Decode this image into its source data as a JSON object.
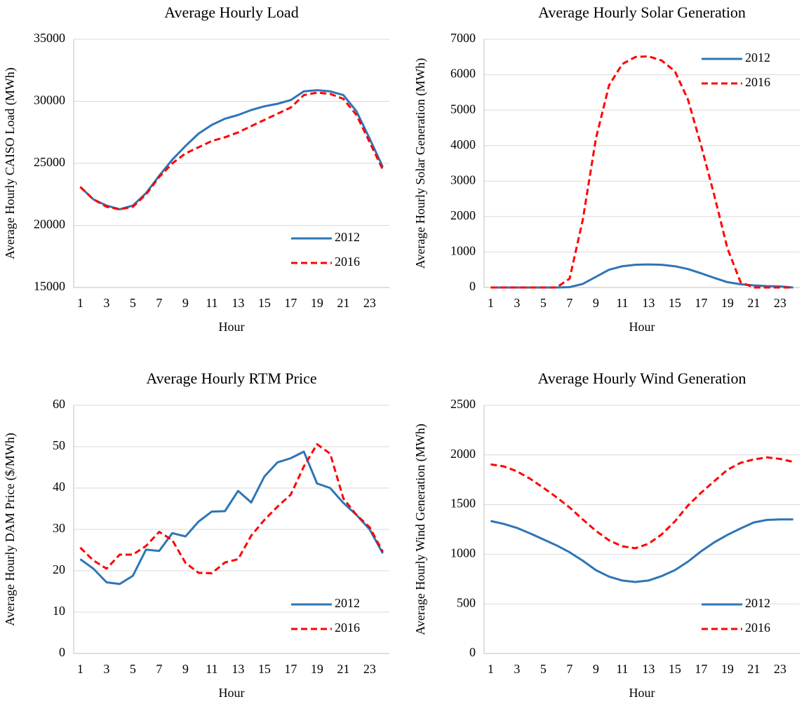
{
  "chart_data": [
    {
      "type": "line",
      "title": "Average Hourly Load",
      "x_label": "Hour",
      "y_label": "Average Hourly CAISO Load (MWh)",
      "categories": [
        1,
        null,
        3,
        null,
        5,
        null,
        7,
        null,
        9,
        null,
        11,
        null,
        13,
        null,
        15,
        null,
        17,
        null,
        19,
        null,
        21,
        null,
        23,
        null
      ],
      "series": [
        {
          "name": "2012",
          "color": "#2e75b6",
          "dashed": false,
          "values": [
            23100,
            22100,
            21600,
            21300,
            21600,
            22600,
            24000,
            25300,
            26400,
            27400,
            28100,
            28600,
            28900,
            29300,
            29600,
            29800,
            30100,
            30800,
            30900,
            30800,
            30500,
            29200,
            27000,
            24700
          ]
        },
        {
          "name": "2016",
          "color": "#ff0000",
          "dashed": true,
          "values": [
            23100,
            22100,
            21500,
            21300,
            21500,
            22500,
            23900,
            25000,
            25800,
            26300,
            26800,
            27100,
            27500,
            28000,
            28500,
            29000,
            29500,
            30500,
            30700,
            30600,
            30200,
            28900,
            26700,
            24500
          ]
        }
      ],
      "ylim": [
        15000,
        35000
      ],
      "yticks": [
        15000,
        20000,
        25000,
        30000,
        35000
      ],
      "grid": true,
      "legend": "lower right"
    },
    {
      "type": "line",
      "title": "Average Hourly Solar Generation",
      "x_label": "Hour",
      "y_label": "Average Hourly Solar Generation (MWh)",
      "categories": [
        1,
        null,
        3,
        null,
        5,
        null,
        7,
        null,
        9,
        null,
        11,
        null,
        13,
        null,
        15,
        null,
        17,
        null,
        19,
        null,
        21,
        null,
        23,
        null
      ],
      "series": [
        {
          "name": "2012",
          "color": "#2e75b6",
          "dashed": false,
          "values": [
            0,
            0,
            0,
            0,
            0,
            0,
            10,
            100,
            300,
            500,
            600,
            640,
            650,
            640,
            600,
            520,
            400,
            270,
            150,
            90,
            60,
            40,
            30,
            0
          ]
        },
        {
          "name": "2016",
          "color": "#ff0000",
          "dashed": true,
          "values": [
            0,
            0,
            0,
            0,
            0,
            0,
            250,
            1900,
            4200,
            5700,
            6300,
            6500,
            6520,
            6400,
            6100,
            5300,
            4000,
            2600,
            1100,
            150,
            0,
            0,
            0,
            0
          ]
        }
      ],
      "ylim": [
        0,
        7000
      ],
      "yticks": [
        0,
        1000,
        2000,
        3000,
        4000,
        5000,
        6000,
        7000
      ],
      "grid": true,
      "legend": "upper right"
    },
    {
      "type": "line",
      "title": "Average Hourly RTM Price",
      "x_label": "Hour",
      "y_label": "Average Hourly DAM Price ($/MWh)",
      "categories": [
        1,
        null,
        3,
        null,
        5,
        null,
        7,
        null,
        9,
        null,
        11,
        null,
        13,
        null,
        15,
        null,
        17,
        null,
        19,
        null,
        21,
        null,
        23,
        null
      ],
      "series": [
        {
          "name": "2012",
          "color": "#2e75b6",
          "dashed": false,
          "values": [
            22.8,
            20.5,
            17.2,
            16.8,
            18.8,
            25.1,
            24.8,
            29.1,
            28.3,
            31.9,
            34.3,
            34.4,
            39.3,
            36.5,
            42.8,
            46.2,
            47.2,
            48.8,
            41.1,
            40.0,
            36.4,
            33.5,
            30.0,
            24.2
          ]
        },
        {
          "name": "2016",
          "color": "#ff0000",
          "dashed": true,
          "values": [
            25.6,
            22.5,
            20.5,
            23.9,
            23.9,
            26.0,
            29.4,
            27.4,
            21.9,
            19.5,
            19.4,
            22.0,
            22.8,
            28.5,
            32.3,
            35.5,
            38.4,
            45.2,
            50.6,
            48.3,
            37.5,
            33.5,
            30.5,
            24.6
          ]
        }
      ],
      "ylim": [
        0,
        60
      ],
      "yticks": [
        0,
        10,
        20,
        30,
        40,
        50,
        60
      ],
      "grid": true,
      "legend": "lower right"
    },
    {
      "type": "line",
      "title": "Average Hourly Wind Generation",
      "x_label": "Hour",
      "y_label": "Average Hourly Wind Generation (MWh)",
      "categories": [
        1,
        null,
        3,
        null,
        5,
        null,
        7,
        null,
        9,
        null,
        11,
        null,
        13,
        null,
        15,
        null,
        17,
        null,
        19,
        null,
        21,
        null,
        23,
        null
      ],
      "series": [
        {
          "name": "2012",
          "color": "#2e75b6",
          "dashed": false,
          "values": [
            1335,
            1305,
            1265,
            1210,
            1150,
            1090,
            1020,
            935,
            840,
            775,
            735,
            720,
            735,
            780,
            840,
            925,
            1030,
            1120,
            1195,
            1260,
            1320,
            1345,
            1350,
            1350
          ]
        },
        {
          "name": "2016",
          "color": "#ff0000",
          "dashed": true,
          "values": [
            1905,
            1885,
            1835,
            1760,
            1670,
            1575,
            1470,
            1350,
            1235,
            1140,
            1080,
            1060,
            1105,
            1200,
            1330,
            1490,
            1620,
            1735,
            1850,
            1920,
            1955,
            1975,
            1960,
            1930
          ]
        }
      ],
      "ylim": [
        0,
        2500
      ],
      "yticks": [
        0,
        500,
        1000,
        1500,
        2000,
        2500
      ],
      "grid": true,
      "legend": "lower right"
    }
  ]
}
